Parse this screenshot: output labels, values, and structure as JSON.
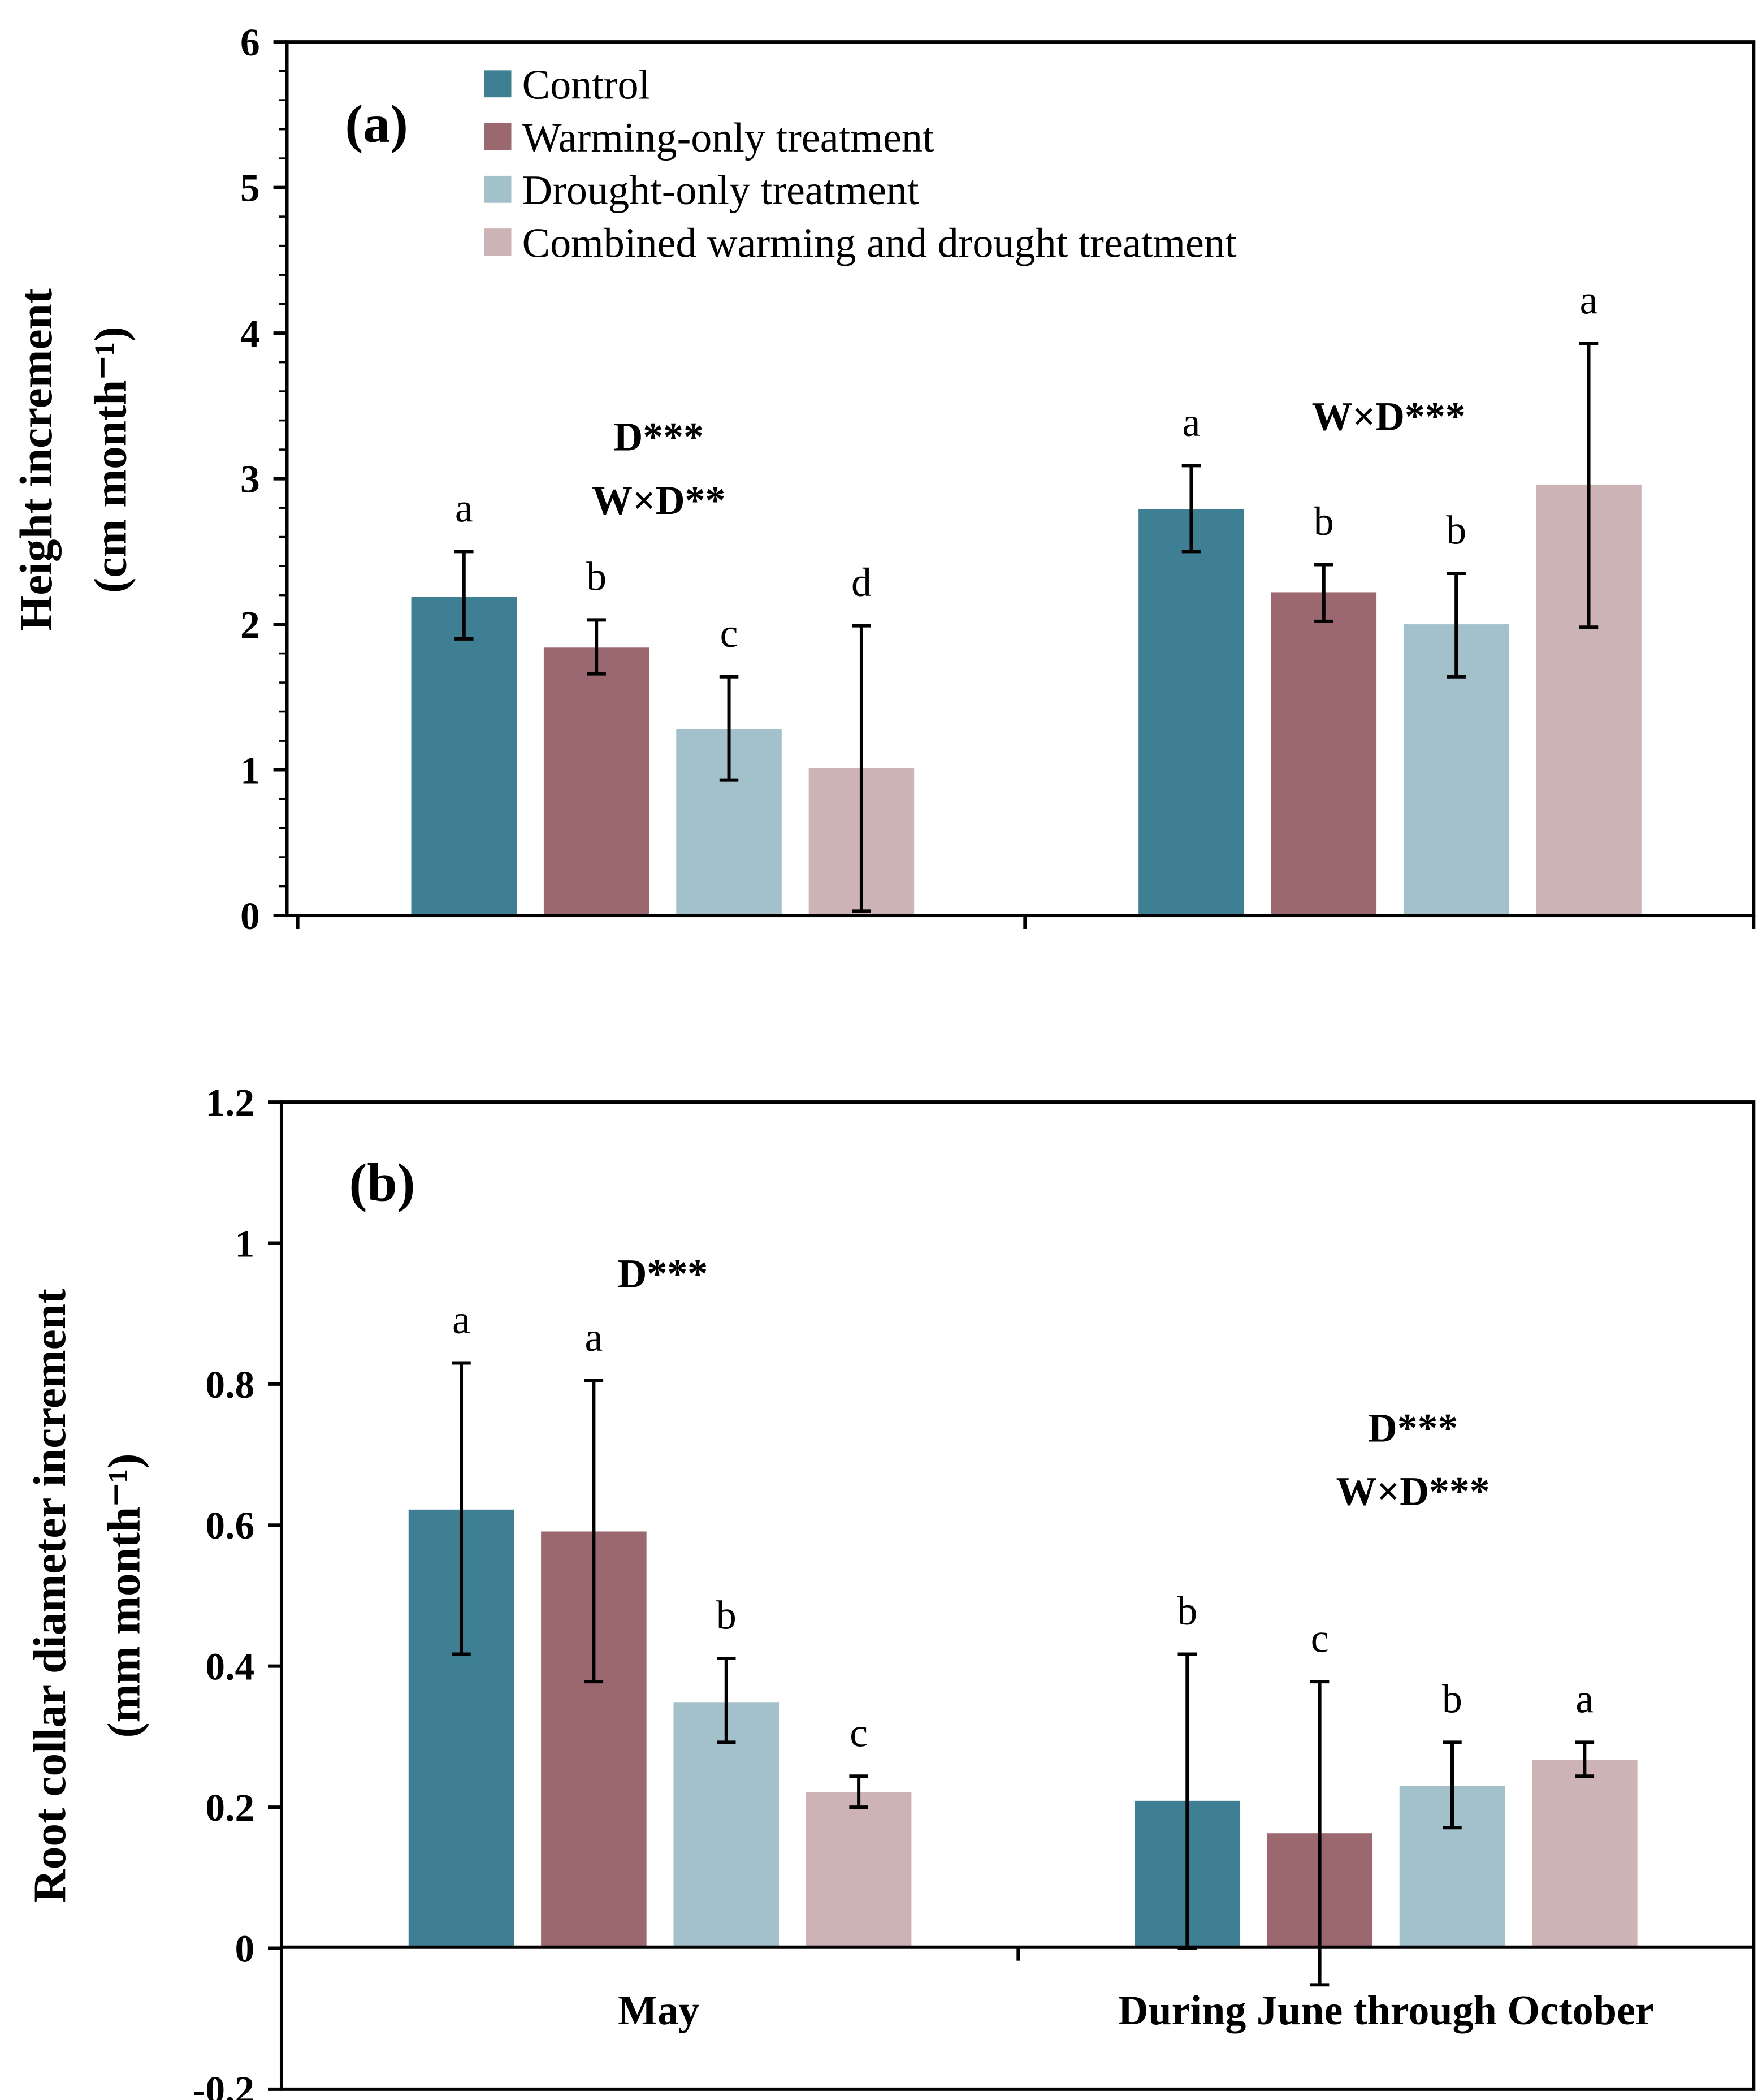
{
  "legend": [
    {
      "label": "Control",
      "color": "#3F7F93"
    },
    {
      "label": "Warming-only treatment",
      "color": "#9B6870"
    },
    {
      "label": "Drought-only treatment",
      "color": "#A3C1CA"
    },
    {
      "label": "Combined warming and drought treatment",
      "color": "#CEB3B6"
    }
  ],
  "chart_data": [
    {
      "type": "bar",
      "panel_label": "(a)",
      "ylabel_line1": "Height increment",
      "ylabel_line2": "(cm month⁻¹)",
      "ylim": [
        0,
        6
      ],
      "yticks": [
        0,
        1,
        2,
        3,
        4,
        5,
        6
      ],
      "ytick_labels": [
        "0",
        "1",
        "2",
        "3",
        "4",
        "5",
        "6"
      ],
      "categories": [
        "May",
        "During June through October"
      ],
      "series": [
        {
          "name": "Control",
          "values": [
            2.19,
            2.79
          ],
          "err_low": [
            1.9,
            2.5
          ],
          "err_high": [
            2.5,
            3.09
          ],
          "letters": [
            "a",
            "a"
          ]
        },
        {
          "name": "Warming-only treatment",
          "values": [
            1.84,
            2.22
          ],
          "err_low": [
            1.66,
            2.02
          ],
          "err_high": [
            2.03,
            2.41
          ],
          "letters": [
            "b",
            "b"
          ]
        },
        {
          "name": "Drought-only treatment",
          "values": [
            1.28,
            2.0
          ],
          "err_low": [
            0.93,
            1.64
          ],
          "err_high": [
            1.64,
            2.35
          ],
          "letters": [
            "c",
            "b"
          ]
        },
        {
          "name": "Combined warming and drought treatment",
          "values": [
            1.01,
            2.96
          ],
          "err_low": [
            0.03,
            1.98
          ],
          "err_high": [
            1.99,
            3.93
          ],
          "letters": [
            "d",
            "a"
          ]
        }
      ],
      "annotations": [
        {
          "group": 0,
          "lines": [
            "D***",
            "W×D**"
          ]
        },
        {
          "group": 1,
          "lines": [
            "W×D***"
          ]
        }
      ]
    },
    {
      "type": "bar",
      "panel_label": "(b)",
      "ylabel_line1": "Root collar diameter increment",
      "ylabel_line2": "(mm month⁻¹)",
      "ylim": [
        -0.2,
        1.2
      ],
      "yticks": [
        -0.2,
        0,
        0.2,
        0.4,
        0.6,
        0.8,
        1,
        1.2
      ],
      "ytick_labels": [
        "-0.2",
        "0",
        "0.2",
        "0.4",
        "0.6",
        "0.8",
        "1",
        "1.2"
      ],
      "categories": [
        "May",
        "During June through October"
      ],
      "series": [
        {
          "name": "Control",
          "values": [
            0.622,
            0.209
          ],
          "err_low": [
            0.417,
            0.0
          ],
          "err_high": [
            0.83,
            0.417
          ],
          "letters": [
            "a",
            "b"
          ]
        },
        {
          "name": "Warming-only treatment",
          "values": [
            0.591,
            0.163
          ],
          "err_low": [
            0.378,
            -0.052
          ],
          "err_high": [
            0.805,
            0.378
          ],
          "letters": [
            "a",
            "c"
          ]
        },
        {
          "name": "Drought-only treatment",
          "values": [
            0.349,
            0.23
          ],
          "err_low": [
            0.292,
            0.171
          ],
          "err_high": [
            0.411,
            0.292
          ],
          "letters": [
            "b",
            "b"
          ]
        },
        {
          "name": "Combined warming and drought treatment",
          "values": [
            0.221,
            0.267
          ],
          "err_low": [
            0.2,
            0.244
          ],
          "err_high": [
            0.244,
            0.292
          ],
          "letters": [
            "c",
            "a"
          ]
        }
      ],
      "annotations": [
        {
          "group": 0,
          "lines": [
            "D***"
          ]
        },
        {
          "group": 1,
          "lines": [
            "D***",
            "W×D***"
          ]
        }
      ]
    }
  ]
}
